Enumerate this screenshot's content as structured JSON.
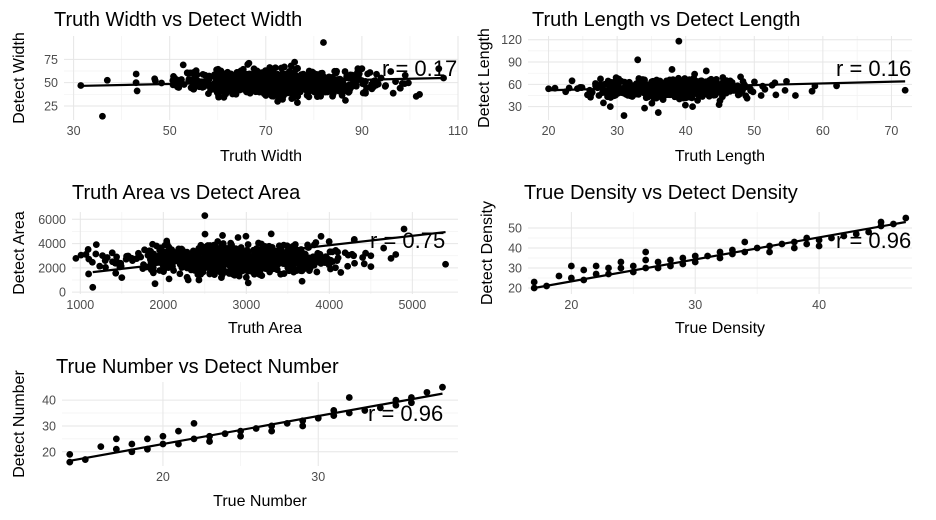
{
  "chart_data": [
    {
      "type": "scatter",
      "title": "Truth Width vs Detect Width",
      "xlabel": "Truth Width",
      "ylabel": "Detect Width",
      "xticks": [
        30,
        50,
        70,
        90,
        110
      ],
      "xtick_labels": [
        "30",
        "50",
        "70",
        "90",
        "110"
      ],
      "yticks": [
        25,
        50,
        75
      ],
      "ytick_labels": [
        "25",
        "50",
        "75"
      ],
      "xlim": [
        28,
        110
      ],
      "ylim": [
        10,
        100
      ],
      "grid": true,
      "annotation": "r = 0.17",
      "fit_line": {
        "x": [
          31,
          107
        ],
        "y": [
          46.5,
          55
        ]
      },
      "points": [
        {
          "x": 31.5,
          "y": 47
        },
        {
          "x": 36,
          "y": 14
        },
        {
          "x": 43,
          "y": 50
        },
        {
          "x": 47,
          "y": 52
        },
        {
          "x": 51,
          "y": 55
        },
        {
          "x": 53,
          "y": 48
        },
        {
          "x": 55,
          "y": 43
        },
        {
          "x": 58,
          "y": 56
        },
        {
          "x": 61,
          "y": 50
        },
        {
          "x": 64,
          "y": 61
        },
        {
          "x": 66,
          "y": 40
        },
        {
          "x": 68,
          "y": 58
        },
        {
          "x": 70,
          "y": 49
        },
        {
          "x": 72,
          "y": 66
        },
        {
          "x": 74,
          "y": 38
        },
        {
          "x": 76,
          "y": 72
        },
        {
          "x": 78,
          "y": 47
        },
        {
          "x": 80,
          "y": 60
        },
        {
          "x": 82,
          "y": 93
        },
        {
          "x": 84,
          "y": 45
        },
        {
          "x": 86,
          "y": 52
        },
        {
          "x": 88,
          "y": 58
        },
        {
          "x": 90,
          "y": 65
        },
        {
          "x": 92,
          "y": 48
        },
        {
          "x": 94,
          "y": 55
        },
        {
          "x": 96,
          "y": 62
        },
        {
          "x": 98,
          "y": 44
        },
        {
          "x": 106,
          "y": 65
        },
        {
          "x": 107,
          "y": 55
        }
      ],
      "cloud": {
        "x_center": 72,
        "x_spread": 10,
        "y_center": 50,
        "y_spread": 7,
        "count": 700
      }
    },
    {
      "type": "scatter",
      "title": "Truth Length vs Detect Length",
      "xlabel": "Truth Length",
      "ylabel": "Detect Length",
      "xticks": [
        20,
        30,
        40,
        50,
        60,
        70
      ],
      "xtick_labels": [
        "20",
        "30",
        "40",
        "50",
        "60",
        "70"
      ],
      "yticks": [
        30,
        60,
        90,
        120
      ],
      "ytick_labels": [
        "30",
        "60",
        "90",
        "120"
      ],
      "xlim": [
        17,
        73
      ],
      "ylim": [
        12,
        125
      ],
      "grid": true,
      "annotation": "r = 0.16",
      "fit_line": {
        "x": [
          20,
          72
        ],
        "y": [
          52,
          64
        ]
      },
      "points": [
        {
          "x": 20,
          "y": 54
        },
        {
          "x": 23,
          "y": 55
        },
        {
          "x": 26,
          "y": 52
        },
        {
          "x": 28,
          "y": 35
        },
        {
          "x": 29,
          "y": 30
        },
        {
          "x": 31,
          "y": 18
        },
        {
          "x": 33,
          "y": 93
        },
        {
          "x": 34,
          "y": 28
        },
        {
          "x": 36,
          "y": 22
        },
        {
          "x": 38,
          "y": 80
        },
        {
          "x": 39,
          "y": 118
        },
        {
          "x": 41,
          "y": 30
        },
        {
          "x": 43,
          "y": 78
        },
        {
          "x": 45,
          "y": 38
        },
        {
          "x": 48,
          "y": 70
        },
        {
          "x": 51,
          "y": 45
        },
        {
          "x": 53,
          "y": 62
        },
        {
          "x": 56,
          "y": 45
        },
        {
          "x": 62,
          "y": 58
        },
        {
          "x": 72,
          "y": 52
        }
      ],
      "cloud": {
        "x_center": 38,
        "x_spread": 5.5,
        "y_center": 54,
        "y_spread": 6,
        "count": 650
      }
    },
    {
      "type": "scatter",
      "title": "Truth Area vs Detect Area",
      "xlabel": "Truth Area",
      "ylabel": "Detect Area",
      "xticks": [
        1000,
        2000,
        3000,
        4000,
        5000
      ],
      "xtick_labels": [
        "1000",
        "2000",
        "3000",
        "4000",
        "5000"
      ],
      "yticks": [
        0,
        2000,
        4000,
        6000
      ],
      "ytick_labels": [
        "0",
        "2000",
        "4000",
        "6000"
      ],
      "xlim": [
        900,
        5550
      ],
      "ylim": [
        -150,
        6600
      ],
      "grid": true,
      "annotation": "r = 0.75",
      "fit_line": {
        "x": [
          1150,
          5400
        ],
        "y": [
          1650,
          4950
        ]
      },
      "points": [
        {
          "x": 1100,
          "y": 1500
        },
        {
          "x": 1150,
          "y": 400
        },
        {
          "x": 1300,
          "y": 2600
        },
        {
          "x": 1500,
          "y": 1200
        },
        {
          "x": 1700,
          "y": 3200
        },
        {
          "x": 1900,
          "y": 700
        },
        {
          "x": 2100,
          "y": 3500
        },
        {
          "x": 2300,
          "y": 1000
        },
        {
          "x": 2500,
          "y": 6300
        },
        {
          "x": 2700,
          "y": 1200
        },
        {
          "x": 2900,
          "y": 4500
        },
        {
          "x": 3100,
          "y": 1700
        },
        {
          "x": 3300,
          "y": 4800
        },
        {
          "x": 3500,
          "y": 2000
        },
        {
          "x": 3700,
          "y": 2500
        },
        {
          "x": 3900,
          "y": 4600
        },
        {
          "x": 4100,
          "y": 3300
        },
        {
          "x": 4300,
          "y": 4300
        },
        {
          "x": 4500,
          "y": 3000
        },
        {
          "x": 4800,
          "y": 3100
        },
        {
          "x": 4900,
          "y": 5200
        },
        {
          "x": 5400,
          "y": 2300
        }
      ],
      "cloud": {
        "x_center": 2850,
        "x_spread": 650,
        "y_center": 2700,
        "y_spread": 600,
        "count": 750
      }
    },
    {
      "type": "scatter",
      "title": "True Density vs Detect Density",
      "xlabel": "True Density",
      "ylabel": "Detect Density",
      "xticks": [
        20,
        30,
        40
      ],
      "xtick_labels": [
        "20",
        "30",
        "40"
      ],
      "yticks": [
        20,
        30,
        40,
        50
      ],
      "ytick_labels": [
        "20",
        "30",
        "40",
        "50"
      ],
      "xlim": [
        16.5,
        47.5
      ],
      "ylim": [
        17,
        58
      ],
      "grid": true,
      "annotation": "r = 0.96",
      "fit_line": {
        "x": [
          17,
          47
        ],
        "y": [
          20,
          53
        ]
      },
      "points": [
        {
          "x": 17,
          "y": 20
        },
        {
          "x": 17,
          "y": 23
        },
        {
          "x": 18,
          "y": 21
        },
        {
          "x": 19,
          "y": 26
        },
        {
          "x": 20,
          "y": 25
        },
        {
          "x": 20,
          "y": 31
        },
        {
          "x": 21,
          "y": 29
        },
        {
          "x": 21,
          "y": 24
        },
        {
          "x": 22,
          "y": 27
        },
        {
          "x": 22,
          "y": 31
        },
        {
          "x": 23,
          "y": 30
        },
        {
          "x": 23,
          "y": 27
        },
        {
          "x": 24,
          "y": 30
        },
        {
          "x": 24,
          "y": 33
        },
        {
          "x": 25,
          "y": 31
        },
        {
          "x": 25,
          "y": 28
        },
        {
          "x": 26,
          "y": 38
        },
        {
          "x": 26,
          "y": 34
        },
        {
          "x": 26,
          "y": 30
        },
        {
          "x": 27,
          "y": 33
        },
        {
          "x": 27,
          "y": 30
        },
        {
          "x": 28,
          "y": 34
        },
        {
          "x": 28,
          "y": 31
        },
        {
          "x": 29,
          "y": 35
        },
        {
          "x": 29,
          "y": 32
        },
        {
          "x": 30,
          "y": 36
        },
        {
          "x": 30,
          "y": 33
        },
        {
          "x": 31,
          "y": 36
        },
        {
          "x": 32,
          "y": 38
        },
        {
          "x": 32,
          "y": 35
        },
        {
          "x": 33,
          "y": 39
        },
        {
          "x": 33,
          "y": 37
        },
        {
          "x": 34,
          "y": 43
        },
        {
          "x": 34,
          "y": 38
        },
        {
          "x": 35,
          "y": 40
        },
        {
          "x": 36,
          "y": 41
        },
        {
          "x": 36,
          "y": 38
        },
        {
          "x": 37,
          "y": 42
        },
        {
          "x": 38,
          "y": 43
        },
        {
          "x": 38,
          "y": 40
        },
        {
          "x": 39,
          "y": 45
        },
        {
          "x": 39,
          "y": 42
        },
        {
          "x": 40,
          "y": 44
        },
        {
          "x": 40,
          "y": 41
        },
        {
          "x": 41,
          "y": 45
        },
        {
          "x": 42,
          "y": 46
        },
        {
          "x": 43,
          "y": 47
        },
        {
          "x": 44,
          "y": 48
        },
        {
          "x": 45,
          "y": 51
        },
        {
          "x": 45,
          "y": 53
        },
        {
          "x": 46,
          "y": 52
        },
        {
          "x": 47,
          "y": 55
        }
      ]
    },
    {
      "type": "scatter",
      "title": "True Number vs Detect Number",
      "xlabel": "True Number",
      "ylabel": "Detect Number",
      "xticks": [
        20,
        30
      ],
      "xtick_labels": [
        "20",
        "30"
      ],
      "yticks": [
        20,
        30,
        40
      ],
      "ytick_labels": [
        "20",
        "30",
        "40"
      ],
      "xlim": [
        13.5,
        39
      ],
      "ylim": [
        14.5,
        47
      ],
      "grid": true,
      "annotation": "r = 0.96",
      "fit_line": {
        "x": [
          14,
          38
        ],
        "y": [
          16.5,
          42.5
        ]
      },
      "points": [
        {
          "x": 14,
          "y": 16
        },
        {
          "x": 14,
          "y": 19
        },
        {
          "x": 15,
          "y": 17
        },
        {
          "x": 16,
          "y": 22
        },
        {
          "x": 17,
          "y": 21
        },
        {
          "x": 17,
          "y": 25
        },
        {
          "x": 18,
          "y": 20
        },
        {
          "x": 18,
          "y": 23
        },
        {
          "x": 19,
          "y": 21
        },
        {
          "x": 19,
          "y": 25
        },
        {
          "x": 20,
          "y": 23
        },
        {
          "x": 20,
          "y": 26
        },
        {
          "x": 21,
          "y": 23
        },
        {
          "x": 21,
          "y": 28
        },
        {
          "x": 22,
          "y": 31
        },
        {
          "x": 22,
          "y": 25
        },
        {
          "x": 23,
          "y": 26
        },
        {
          "x": 23,
          "y": 24
        },
        {
          "x": 24,
          "y": 27
        },
        {
          "x": 25,
          "y": 28
        },
        {
          "x": 25,
          "y": 26
        },
        {
          "x": 26,
          "y": 29
        },
        {
          "x": 27,
          "y": 30
        },
        {
          "x": 27,
          "y": 28
        },
        {
          "x": 28,
          "y": 31
        },
        {
          "x": 29,
          "y": 32
        },
        {
          "x": 29,
          "y": 30
        },
        {
          "x": 30,
          "y": 33
        },
        {
          "x": 31,
          "y": 34
        },
        {
          "x": 31,
          "y": 36
        },
        {
          "x": 32,
          "y": 35
        },
        {
          "x": 32,
          "y": 41
        },
        {
          "x": 33,
          "y": 36
        },
        {
          "x": 34,
          "y": 37
        },
        {
          "x": 35,
          "y": 38
        },
        {
          "x": 35,
          "y": 40
        },
        {
          "x": 36,
          "y": 39
        },
        {
          "x": 36,
          "y": 41
        },
        {
          "x": 37,
          "y": 43
        },
        {
          "x": 38,
          "y": 45
        }
      ]
    }
  ]
}
